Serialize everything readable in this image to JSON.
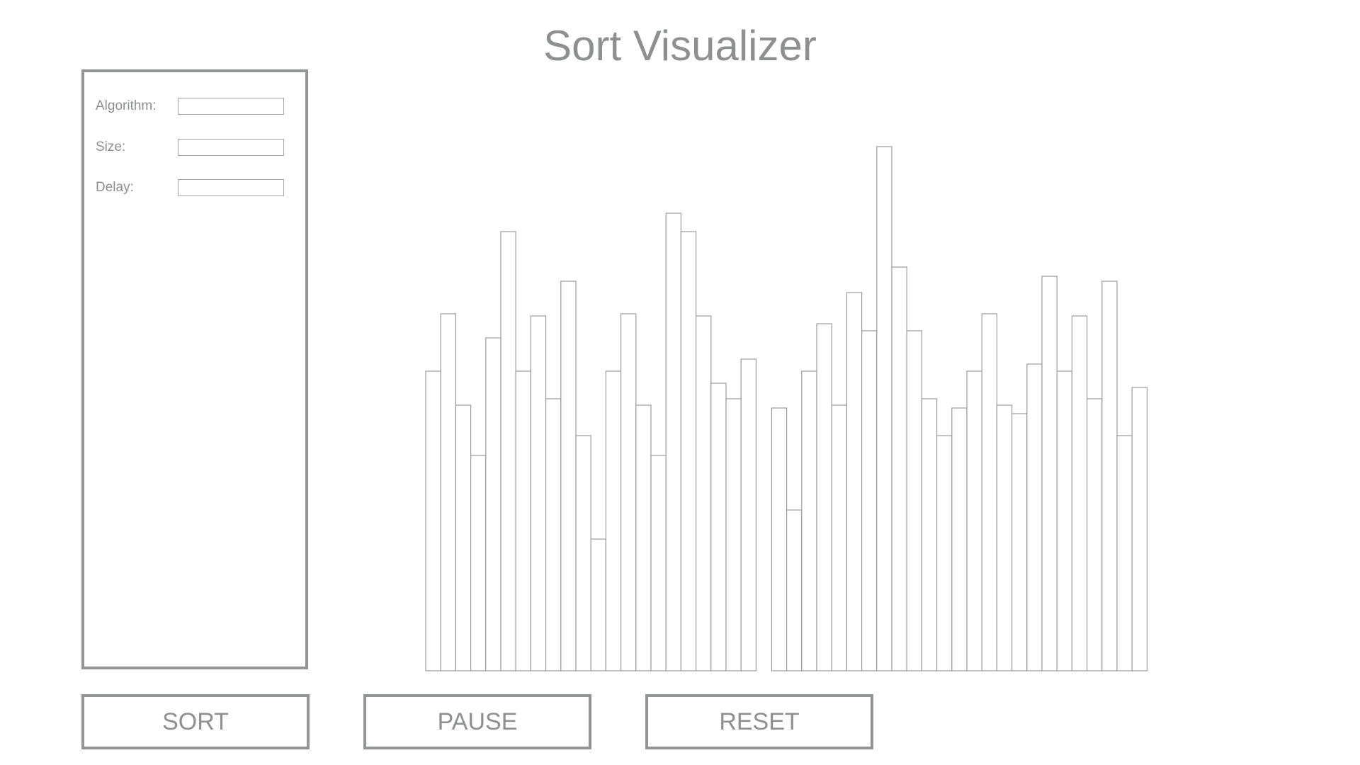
{
  "app": {
    "title": "Sort Visualizer"
  },
  "controls": {
    "algorithm": {
      "label": "Algorithm:",
      "value": ""
    },
    "size": {
      "label": "Size:",
      "value": ""
    },
    "delay": {
      "label": "Delay:",
      "value": ""
    }
  },
  "buttons": {
    "sort": "SORT",
    "pause": "PAUSE",
    "reset": "RESET"
  },
  "chart_data": {
    "type": "bar",
    "value_max": 740,
    "values": [
      423,
      504,
      375,
      304,
      470,
      620,
      423,
      501,
      384,
      550,
      332,
      186,
      423,
      504,
      375,
      304,
      646,
      620,
      501,
      406,
      384,
      440,
      371,
      227,
      423,
      490,
      375,
      534,
      480,
      740,
      570,
      480,
      384,
      332,
      371,
      423,
      504,
      375,
      363,
      433,
      557,
      423,
      501,
      384,
      550,
      332,
      400
    ],
    "gap_after_index": 21
  },
  "colors": {
    "border": "#929496",
    "bar_stroke": "#9a9b9d",
    "text": "#8e8f91",
    "background": "#ffffff"
  }
}
